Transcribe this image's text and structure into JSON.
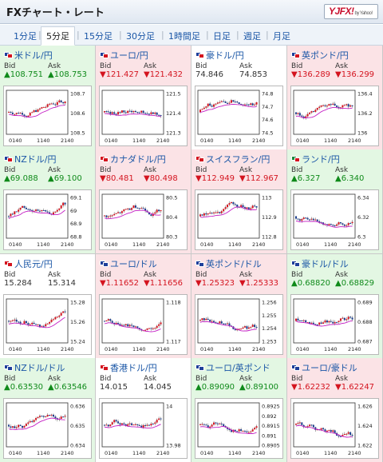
{
  "header": {
    "title": "FXチャート・レート",
    "logo_main": "YJFX!",
    "logo_sub": "by Yahoo!"
  },
  "tabs": [
    {
      "label": "1分足",
      "active": false
    },
    {
      "label": "5分足",
      "active": true
    },
    {
      "label": "15分足",
      "active": false
    },
    {
      "label": "30分足",
      "active": false
    },
    {
      "label": "1時間足",
      "active": false
    },
    {
      "label": "日足",
      "active": false
    },
    {
      "label": "週足",
      "active": false
    },
    {
      "label": "月足",
      "active": false
    }
  ],
  "labels": {
    "bid": "Bid",
    "ask": "Ask"
  },
  "colors": {
    "up_bg": "#e3f7e3",
    "down_bg": "#fbe3e6",
    "up_text": "#0f8a1a",
    "down_text": "#d4141f",
    "candle_up": "#d4141f",
    "candle_down": "#1a3d8f",
    "ma_line": "#c41ec4"
  },
  "pairs": [
    {
      "name": "米ドル/円",
      "dir": "up",
      "bid": "▲108.751",
      "ask": "▲108.753",
      "flags": [
        "#1f3f9a",
        "#d4141f"
      ],
      "yticks": [
        "108.7",
        "108.6",
        "108.5"
      ],
      "xticks": [
        "0140",
        "1140",
        "2140"
      ],
      "trend": 0.9
    },
    {
      "name": "ユーロ/円",
      "dir": "down",
      "bid": "▼121.427",
      "ask": "▼121.432",
      "flags": [
        "#1f3f9a",
        "#d4141f"
      ],
      "yticks": [
        "121.5",
        "121.4",
        "121.3"
      ],
      "xticks": [
        "0140",
        "1140",
        "2140"
      ],
      "trend": 0.6
    },
    {
      "name": "豪ドル/円",
      "dir": "flat",
      "bid": "74.846",
      "ask": "74.853",
      "flags": [
        "#1f3f9a",
        "#d4141f"
      ],
      "yticks": [
        "74.8",
        "74.7",
        "74.6",
        "74.5"
      ],
      "xticks": [
        "0140",
        "1140",
        "2140"
      ],
      "trend": 0.8
    },
    {
      "name": "英ポンド/円",
      "dir": "down",
      "bid": "▼136.289",
      "ask": "▼136.299",
      "flags": [
        "#1f3f9a",
        "#d4141f"
      ],
      "yticks": [
        "136.4",
        "136.2",
        "136"
      ],
      "xticks": [
        "0140",
        "1140",
        "2140"
      ],
      "trend": 0.4
    },
    {
      "name": "NZドル/円",
      "dir": "up",
      "bid": "▲69.088",
      "ask": "▲69.100",
      "flags": [
        "#1f3f9a",
        "#d4141f"
      ],
      "yticks": [
        "69.1",
        "69",
        "68.9",
        "68.8"
      ],
      "xticks": [
        "0140",
        "1140",
        "2140"
      ],
      "trend": 0.9
    },
    {
      "name": "カナダドル/円",
      "dir": "down",
      "bid": "▼80.481",
      "ask": "▼80.498",
      "flags": [
        "#d4141f",
        "#d4141f"
      ],
      "yticks": [
        "80.5",
        "80.4",
        "80.3"
      ],
      "xticks": [
        "0140",
        "1140",
        "2140"
      ],
      "trend": 0.7
    },
    {
      "name": "スイスフラン/円",
      "dir": "down",
      "bid": "▼112.949",
      "ask": "▼112.967",
      "flags": [
        "#d4141f",
        "#d4141f"
      ],
      "yticks": [
        "113",
        "112.9",
        "112.8"
      ],
      "xticks": [
        "0140",
        "1140",
        "2140"
      ],
      "trend": 0.6
    },
    {
      "name": "ランド/円",
      "dir": "up",
      "bid": "▲6.327",
      "ask": "▲6.340",
      "flags": [
        "#1a8a3a",
        "#d4141f"
      ],
      "yticks": [
        "6.34",
        "6.32",
        "6.3"
      ],
      "xticks": [
        "0140",
        "1140",
        "2140"
      ],
      "trend": 0.3
    },
    {
      "name": "人民元/円",
      "dir": "flat",
      "bid": "15.284",
      "ask": "15.314",
      "flags": [
        "#d4141f",
        "#d4141f"
      ],
      "yticks": [
        "15.28",
        "15.26",
        "15.24"
      ],
      "xticks": [
        "0140",
        "1140",
        "2140"
      ],
      "trend": 0.8
    },
    {
      "name": "ユーロ/ドル",
      "dir": "down",
      "bid": "▼1.11652",
      "ask": "▼1.11656",
      "flags": [
        "#1f3f9a",
        "#1f3f9a"
      ],
      "yticks": [
        "1.118",
        "1.117"
      ],
      "xticks": [
        "0140",
        "1140",
        "2140"
      ],
      "trend": 0.2
    },
    {
      "name": "英ポンド/ドル",
      "dir": "down",
      "bid": "▼1.25323",
      "ask": "▼1.25333",
      "flags": [
        "#1f3f9a",
        "#1f3f9a"
      ],
      "yticks": [
        "1.256",
        "1.255",
        "1.254",
        "1.253"
      ],
      "xticks": [
        "0140",
        "1140",
        "2140"
      ],
      "trend": 0.3
    },
    {
      "name": "豪ドル/ドル",
      "dir": "up",
      "bid": "▲0.68820",
      "ask": "▲0.68829",
      "flags": [
        "#1f3f9a",
        "#1f3f9a"
      ],
      "yticks": [
        "0.689",
        "0.688",
        "0.687"
      ],
      "xticks": [
        "0140",
        "1140",
        "2140"
      ],
      "trend": 0.6
    },
    {
      "name": "NZドル/ドル",
      "dir": "up",
      "bid": "▲0.63530",
      "ask": "▲0.63546",
      "flags": [
        "#1f3f9a",
        "#1f3f9a"
      ],
      "yticks": [
        "0.636",
        "0.635",
        "0.634"
      ],
      "xticks": [
        "0140",
        "1140",
        "2140"
      ],
      "trend": 0.5
    },
    {
      "name": "香港ドル/円",
      "dir": "flat",
      "bid": "14.015",
      "ask": "14.045",
      "flags": [
        "#d4141f",
        "#d4141f"
      ],
      "yticks": [
        "14",
        "13.98"
      ],
      "xticks": [
        "0140",
        "1140",
        "2140"
      ],
      "trend": 0.9
    },
    {
      "name": "ユーロ/英ポンド",
      "dir": "up",
      "bid": "▲0.89090",
      "ask": "▲0.89100",
      "flags": [
        "#1f3f9a",
        "#1f3f9a"
      ],
      "yticks": [
        "0.8925",
        "0.892",
        "0.8915",
        "0.891",
        "0.8905"
      ],
      "xticks": [
        "0140",
        "1140",
        "2140"
      ],
      "trend": 0.4
    },
    {
      "name": "ユーロ/豪ドル",
      "dir": "down",
      "bid": "▼1.62232",
      "ask": "▼1.62247",
      "flags": [
        "#1f3f9a",
        "#1f3f9a"
      ],
      "yticks": [
        "1.626",
        "1.624",
        "1.622"
      ],
      "xticks": [
        "0140",
        "1140",
        "2140"
      ],
      "trend": 0.1
    }
  ]
}
